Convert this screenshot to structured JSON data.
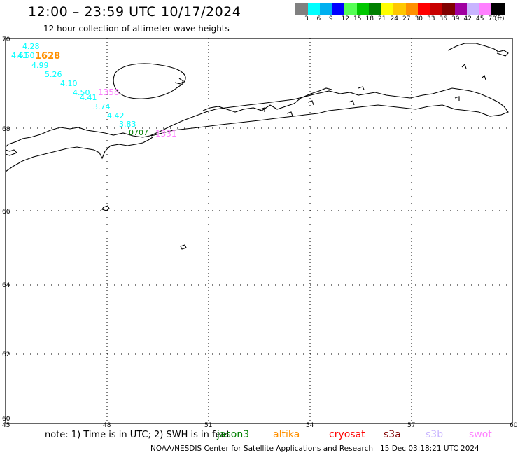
{
  "header": {
    "title": "12:00 – 23:59 UTC 10/17/2024",
    "subtitle": "12 hour collection of altimeter wave heights"
  },
  "scale": {
    "colors": [
      "#808080",
      "#00ffff",
      "#00b0f0",
      "#0000ff",
      "#55ff55",
      "#00c800",
      "#008000",
      "#ffff00",
      "#ffc800",
      "#ff9000",
      "#ff0000",
      "#c80000",
      "#800000",
      "#a000a0",
      "#c8b4ff",
      "#ff80ff",
      "#000000"
    ],
    "labels": [
      "3",
      "6",
      "9",
      "12",
      "15",
      "18",
      "21",
      "24",
      "27",
      "30",
      "33",
      "36",
      "39",
      "42",
      "45",
      "70",
      "(ft)"
    ]
  },
  "map": {
    "lat_labels": [
      "70",
      "68",
      "66",
      "64",
      "62",
      "60"
    ],
    "lon_labels": [
      "45",
      "48",
      "51",
      "54",
      "57",
      "60"
    ]
  },
  "observations": [
    {
      "text": "4.28",
      "color": "#00ffff"
    },
    {
      "text": "4.61",
      "color": "#00ffff"
    },
    {
      "text": "4.50",
      "color": "#00ffff"
    },
    {
      "text": "1628",
      "color": "#ff9000"
    },
    {
      "text": "4.99",
      "color": "#00ffff"
    },
    {
      "text": "5.26",
      "color": "#00ffff"
    },
    {
      "text": "4.10",
      "color": "#00ffff"
    },
    {
      "text": "4.50",
      "color": "#00ffff"
    },
    {
      "text": "4.41",
      "color": "#00ffff"
    },
    {
      "text": "1358",
      "color": "#ff80ff"
    },
    {
      "text": "3.74",
      "color": "#00ffff"
    },
    {
      "text": "4.42",
      "color": "#00ffff"
    },
    {
      "text": "3.83",
      "color": "#00ffff"
    },
    {
      "text": "0707",
      "color": "#008000"
    },
    {
      "text": "1331",
      "color": "#ff80ff"
    }
  ],
  "footer": {
    "note": "note:  1) Time is in UTC;  2) SWH is in feet",
    "satellites": [
      {
        "name": "jason3",
        "color": "#008000"
      },
      {
        "name": "altika",
        "color": "#ff9000"
      },
      {
        "name": "cryosat",
        "color": "#ff0000"
      },
      {
        "name": "s3a",
        "color": "#800000"
      },
      {
        "name": "s3b",
        "color": "#c8b4ff"
      },
      {
        "name": "swot",
        "color": "#ff80ff"
      }
    ],
    "source": "NOAA/NESDIS Center for Satellite Applications and Research",
    "timestamp": "15 Dec 03:18:21 UTC 2024"
  }
}
